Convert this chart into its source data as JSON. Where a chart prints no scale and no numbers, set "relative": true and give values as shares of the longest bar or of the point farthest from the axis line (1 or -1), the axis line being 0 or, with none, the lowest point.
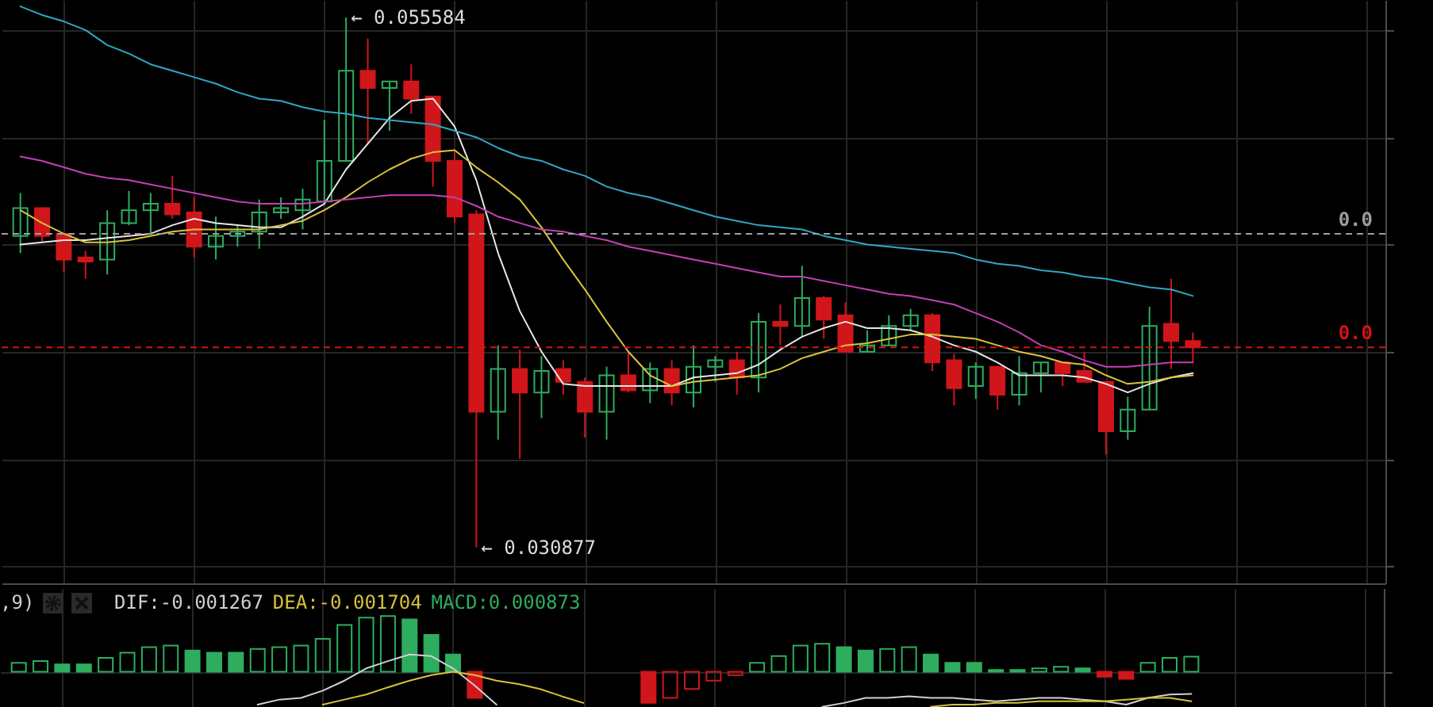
{
  "chart_data": [
    {
      "type": "candlestick",
      "categories": [
        null,
        null,
        null,
        null,
        null,
        null,
        null,
        null,
        null,
        null,
        null,
        null,
        null,
        null,
        null,
        null,
        null,
        null,
        null,
        null,
        null,
        null,
        null,
        null,
        null,
        null,
        null,
        null,
        null,
        null,
        null,
        null,
        null,
        null,
        null,
        null,
        null,
        null,
        null,
        null,
        null,
        null,
        null,
        null,
        null,
        null,
        null,
        null,
        null,
        null,
        null,
        null,
        null,
        null,
        null
      ],
      "ohlc": [
        [
          0.0454,
          0.0474,
          0.0446,
          0.0467
        ],
        [
          0.0467,
          0.0467,
          0.0451,
          0.0454
        ],
        [
          0.0455,
          0.0455,
          0.0437,
          0.0443
        ],
        [
          0.0444,
          0.0447,
          0.0434,
          0.0442
        ],
        [
          0.0443,
          0.0466,
          0.0436,
          0.046
        ],
        [
          0.046,
          0.0475,
          0.0459,
          0.0466
        ],
        [
          0.0466,
          0.0474,
          0.0455,
          0.0469
        ],
        [
          0.0469,
          0.0482,
          0.0462,
          0.0464
        ],
        [
          0.0465,
          0.0472,
          0.0444,
          0.0449
        ],
        [
          0.0449,
          0.0463,
          0.0443,
          0.0454
        ],
        [
          0.0454,
          0.0459,
          0.0449,
          0.0456
        ],
        [
          0.0456,
          0.0471,
          0.0448,
          0.0465
        ],
        [
          0.0465,
          0.0472,
          0.0462,
          0.0467
        ],
        [
          0.0466,
          0.0476,
          0.0457,
          0.0471
        ],
        [
          0.047,
          0.0508,
          0.047,
          0.0489
        ],
        [
          0.0489,
          0.055584,
          0.0489,
          0.0531
        ],
        [
          0.0531,
          0.0546,
          0.0497,
          0.0523
        ],
        [
          0.0523,
          0.0526,
          0.0503,
          0.0526
        ],
        [
          0.0526,
          0.0534,
          0.0511,
          0.0518
        ],
        [
          0.0519,
          0.0519,
          0.0477,
          0.0489
        ],
        [
          0.0489,
          0.0493,
          0.046,
          0.0463
        ],
        [
          0.0464,
          0.0466,
          0.030877,
          0.0372
        ],
        [
          0.0372,
          0.0403,
          0.0359,
          0.0392
        ],
        [
          0.0392,
          0.0401,
          0.035,
          0.0381
        ],
        [
          0.0381,
          0.0398,
          0.0369,
          0.0391
        ],
        [
          0.0392,
          0.0396,
          0.038,
          0.0386
        ],
        [
          0.0386,
          0.0388,
          0.036,
          0.0372
        ],
        [
          0.0372,
          0.0393,
          0.0359,
          0.0389
        ],
        [
          0.0389,
          0.04,
          0.0381,
          0.0382
        ],
        [
          0.0382,
          0.0395,
          0.0376,
          0.0392
        ],
        [
          0.0392,
          0.0396,
          0.0375,
          0.0381
        ],
        [
          0.0381,
          0.0403,
          0.0374,
          0.0393
        ],
        [
          0.0393,
          0.0398,
          0.0386,
          0.0396
        ],
        [
          0.0396,
          0.04,
          0.038,
          0.0388
        ],
        [
          0.0388,
          0.0418,
          0.0381,
          0.0414
        ],
        [
          0.0414,
          0.0422,
          0.0403,
          0.0412
        ],
        [
          0.0412,
          0.044,
          0.0407,
          0.0425
        ],
        [
          0.0425,
          0.0426,
          0.0406,
          0.0415
        ],
        [
          0.0417,
          0.0423,
          0.04,
          0.04
        ],
        [
          0.04,
          0.041,
          0.04,
          0.0403
        ],
        [
          0.0403,
          0.0417,
          0.0403,
          0.0412
        ],
        [
          0.0412,
          0.042,
          0.041,
          0.0417
        ],
        [
          0.0417,
          0.0418,
          0.0391,
          0.0395
        ],
        [
          0.0396,
          0.0399,
          0.0375,
          0.0383
        ],
        [
          0.0384,
          0.0395,
          0.0378,
          0.0393
        ],
        [
          0.0393,
          0.0393,
          0.0373,
          0.038
        ],
        [
          0.038,
          0.0398,
          0.0375,
          0.039
        ],
        [
          0.039,
          0.0395,
          0.0381,
          0.0395
        ],
        [
          0.0395,
          0.0395,
          0.0384,
          0.039
        ],
        [
          0.0391,
          0.04,
          0.0386,
          0.0386
        ],
        [
          0.0386,
          0.0386,
          0.0352,
          0.0363
        ],
        [
          0.0363,
          0.0379,
          0.0359,
          0.0373
        ],
        [
          0.0373,
          0.0421,
          0.0373,
          0.0412
        ],
        [
          0.0413,
          0.0434,
          0.0392,
          0.0405
        ],
        [
          0.0405,
          0.0409,
          0.0395,
          0.0402
        ]
      ],
      "colors": [
        "#2ead5e",
        "#d0161a",
        "#d0161a",
        "#d0161a",
        "#2ead5e",
        "#2ead5e",
        "#2ead5e",
        "#d0161a",
        "#d0161a",
        "#2ead5e",
        "#2ead5e",
        "#2ead5e",
        "#2ead5e",
        "#2ead5e",
        "#2ead5e",
        "#2ead5e",
        "#d0161a",
        "#2ead5e",
        "#d0161a",
        "#d0161a",
        "#d0161a",
        "#d0161a",
        "#2ead5e",
        "#d0161a",
        "#2ead5e",
        "#d0161a",
        "#d0161a",
        "#2ead5e",
        "#d0161a",
        "#2ead5e",
        "#d0161a",
        "#2ead5e",
        "#2ead5e",
        "#d0161a",
        "#2ead5e",
        "#d0161a",
        "#2ead5e",
        "#d0161a",
        "#d0161a",
        "#2ead5e",
        "#2ead5e",
        "#2ead5e",
        "#d0161a",
        "#d0161a",
        "#2ead5e",
        "#d0161a",
        "#2ead5e",
        "#2ead5e",
        "#d0161a",
        "#d0161a",
        "#d0161a",
        "#2ead5e",
        "#2ead5e",
        "#d0161a",
        "#d0161a"
      ],
      "series": [
        {
          "type": "line",
          "color": "#e6e6e6",
          "values": [
            0.045,
            0.0451,
            0.0452,
            0.0452,
            0.0453,
            0.0454,
            0.0455,
            0.0459,
            0.0462,
            0.046,
            0.0459,
            0.0458,
            0.0458,
            0.0463,
            0.0469,
            0.0485,
            0.0497,
            0.0509,
            0.0517,
            0.0518,
            0.0505,
            0.048,
            0.0446,
            0.0419,
            0.04,
            0.0385,
            0.0384,
            0.0384,
            0.0384,
            0.0384,
            0.0384,
            0.0388,
            0.0389,
            0.039,
            0.0394,
            0.0401,
            0.0407,
            0.0411,
            0.0414,
            0.0411,
            0.0411,
            0.041,
            0.0407,
            0.0403,
            0.04,
            0.0395,
            0.0389,
            0.0389,
            0.0389,
            0.0388,
            0.0385,
            0.0381,
            0.0385,
            0.0388,
            0.039
          ]
        },
        {
          "type": "line",
          "color": "#d9c43c",
          "values": [
            0.0466,
            0.046,
            0.0455,
            0.0451,
            0.0451,
            0.0452,
            0.0454,
            0.0456,
            0.0457,
            0.0457,
            0.0457,
            0.0457,
            0.0459,
            0.0461,
            0.0466,
            0.0472,
            0.0479,
            0.0485,
            0.049,
            0.0493,
            0.0494,
            0.0486,
            0.0479,
            0.0471,
            0.0458,
            0.0443,
            0.0429,
            0.0414,
            0.04,
            0.0389,
            0.0384,
            0.0386,
            0.0387,
            0.0388,
            0.0389,
            0.0392,
            0.0397,
            0.04,
            0.0403,
            0.0404,
            0.0406,
            0.0408,
            0.0408,
            0.0407,
            0.0406,
            0.0403,
            0.04,
            0.0398,
            0.0395,
            0.0394,
            0.0389,
            0.0385,
            0.0386,
            0.0388,
            0.0389
          ]
        },
        {
          "type": "line",
          "color": "#c43fb4",
          "values": [
            0.0491,
            0.0489,
            0.0486,
            0.0483,
            0.0481,
            0.048,
            0.0478,
            0.0476,
            0.0474,
            0.0472,
            0.047,
            0.0469,
            0.0469,
            0.0469,
            0.047,
            0.0471,
            0.0472,
            0.0473,
            0.0473,
            0.0473,
            0.0472,
            0.0468,
            0.0463,
            0.046,
            0.0457,
            0.0456,
            0.0454,
            0.0452,
            0.0449,
            0.0447,
            0.0445,
            0.0443,
            0.0441,
            0.0439,
            0.0437,
            0.0435,
            0.0435,
            0.0433,
            0.0431,
            0.0429,
            0.0427,
            0.0426,
            0.0424,
            0.0422,
            0.0418,
            0.0414,
            0.0409,
            0.0403,
            0.04,
            0.0396,
            0.0393,
            0.0393,
            0.0394,
            0.0395,
            0.0395
          ]
        },
        {
          "type": "line",
          "color": "#2fa8c4",
          "values": [
            0.0561,
            0.0557,
            0.0554,
            0.055,
            0.0543,
            0.0539,
            0.0534,
            0.0531,
            0.0528,
            0.0525,
            0.0521,
            0.0518,
            0.0517,
            0.0514,
            0.0512,
            0.0511,
            0.0509,
            0.0508,
            0.0507,
            0.0506,
            0.0503,
            0.05,
            0.0495,
            0.0491,
            0.0489,
            0.0485,
            0.0482,
            0.0477,
            0.0474,
            0.0472,
            0.0469,
            0.0466,
            0.0463,
            0.0461,
            0.0459,
            0.0458,
            0.0457,
            0.0454,
            0.0452,
            0.045,
            0.0449,
            0.0448,
            0.0447,
            0.0446,
            0.0443,
            0.0441,
            0.044,
            0.0438,
            0.0437,
            0.0435,
            0.0434,
            0.0432,
            0.043,
            0.0429,
            0.0426
          ]
        }
      ],
      "ylim": [
        0.0292,
        0.0564
      ],
      "yticks": [
        {
          "value": 0.055,
          "label": null
        },
        {
          "value": 0.05,
          "label": null
        },
        {
          "value": 0.045,
          "label": null
        },
        {
          "value": 0.04,
          "label": null
        },
        {
          "value": 0.035,
          "label": null
        },
        {
          "value": 0.03,
          "label": null
        }
      ],
      "grid": true,
      "ref_lines": [
        {
          "axis": "y",
          "value": 0.0455,
          "label": "0.0",
          "color": "#9e9e9e",
          "line_style": "dashed"
        },
        {
          "axis": "y",
          "value": 0.0402,
          "label": "0.0",
          "color": "#d41414",
          "line_style": "dashed"
        }
      ],
      "annotations": [
        "← 0.055584",
        "← 0.030877"
      ]
    },
    {
      "type": "bar",
      "categories": [
        null,
        null,
        null,
        null,
        null,
        null,
        null,
        null,
        null,
        null,
        null,
        null,
        null,
        null,
        null,
        null,
        null,
        null,
        null,
        null,
        null,
        null,
        null,
        null,
        null,
        null,
        null,
        null,
        null,
        null,
        null,
        null,
        null,
        null,
        null,
        null,
        null,
        null,
        null,
        null,
        null,
        null,
        null,
        null,
        null,
        null,
        null,
        null,
        null,
        null,
        null,
        null,
        null,
        null,
        null
      ],
      "series": [
        {
          "name": "DIF:-0.001267",
          "type": "line",
          "color": "#d0d0d0",
          "values": [
            null,
            null,
            null,
            null,
            null,
            null,
            null,
            null,
            null,
            null,
            null,
            -0.59,
            -0.5,
            -0.47,
            -0.34,
            -0.16,
            0.06,
            0.19,
            0.31,
            0.28,
            0.06,
            -0.25,
            -0.59,
            null,
            null,
            null,
            null,
            null,
            null,
            null,
            null,
            null,
            null,
            null,
            null,
            null,
            null,
            null,
            null,
            null,
            null,
            null,
            null,
            null,
            null,
            null,
            null,
            null,
            null,
            null,
            null,
            null,
            null,
            null,
            null
          ]
        },
        {
          "type": "line",
          "color": "#d0d0d0",
          "values": [
            null,
            null,
            null,
            null,
            null,
            null,
            null,
            null,
            null,
            null,
            null,
            null,
            null,
            null,
            null,
            null,
            null,
            null,
            null,
            null,
            null,
            null,
            null,
            null,
            null,
            null,
            null,
            null,
            null,
            null,
            null,
            null,
            null,
            null,
            null,
            null,
            null,
            -0.63,
            -0.56,
            -0.47,
            -0.47,
            -0.44,
            -0.47,
            -0.47,
            -0.5,
            -0.53,
            -0.5,
            -0.47,
            -0.47,
            -0.5,
            -0.53,
            -0.59,
            -0.47,
            -0.41,
            -0.4
          ]
        },
        {
          "name": "DEA:-0.001704",
          "type": "line",
          "color": "#d6c23a",
          "values": [
            null,
            null,
            null,
            null,
            null,
            null,
            null,
            null,
            null,
            null,
            null,
            null,
            null,
            null,
            -0.59,
            -0.5,
            -0.41,
            -0.28,
            -0.16,
            -0.06,
            0,
            -0.06,
            -0.16,
            -0.22,
            -0.31,
            -0.44,
            -0.56,
            null,
            null,
            null,
            null,
            null,
            null,
            null,
            null,
            null,
            null,
            null,
            null,
            null,
            null,
            null,
            null,
            null,
            null,
            null,
            null,
            null,
            null,
            null,
            null,
            null,
            null,
            null,
            null
          ]
        },
        {
          "type": "line",
          "color": "#d6c23a",
          "values": [
            null,
            null,
            null,
            null,
            null,
            null,
            null,
            null,
            null,
            null,
            null,
            null,
            null,
            null,
            null,
            null,
            null,
            null,
            null,
            null,
            null,
            null,
            null,
            null,
            null,
            null,
            null,
            null,
            null,
            null,
            null,
            null,
            null,
            null,
            null,
            null,
            null,
            null,
            null,
            null,
            null,
            null,
            -0.63,
            -0.59,
            -0.59,
            -0.56,
            -0.56,
            -0.53,
            -0.53,
            -0.53,
            -0.53,
            -0.5,
            -0.47,
            -0.47,
            -0.53
          ]
        },
        {
          "name": "MACD:0.000873",
          "type": "bar",
          "color": "#2ead5e",
          "values": [
            0.16,
            0.19,
            0.13,
            0.13,
            0.25,
            0.34,
            0.44,
            0.47,
            0.38,
            0.34,
            0.34,
            0.41,
            0.44,
            0.47,
            0.59,
            0.84,
            0.97,
            1,
            0.94,
            0.66,
            0.31,
            -0.47,
            null,
            null,
            null,
            null,
            null,
            null,
            null,
            -0.56,
            -0.47,
            -0.31,
            -0.16,
            -0.06,
            0.16,
            0.28,
            0.47,
            0.5,
            0.44,
            0.38,
            0.41,
            0.44,
            0.31,
            0.16,
            0.16,
            0.03,
            0.03,
            0.06,
            0.09,
            0.06,
            -0.09,
            -0.13,
            0.16,
            0.25,
            0.27
          ],
          "colors": [
            "#2ead5e",
            "#2ead5e",
            "#2ead5e",
            "#2ead5e",
            "#2ead5e",
            "#2ead5e",
            "#2ead5e",
            "#2ead5e",
            "#2ead5e",
            "#2ead5e",
            "#2ead5e",
            "#2ead5e",
            "#2ead5e",
            "#2ead5e",
            "#2ead5e",
            "#2ead5e",
            "#2ead5e",
            "#2ead5e",
            "#2ead5e",
            "#2ead5e",
            "#2ead5e",
            "#d0161a",
            null,
            null,
            null,
            null,
            null,
            null,
            null,
            "#d0161a",
            "#d0161a",
            "#d0161a",
            "#d0161a",
            "#d0161a",
            "#2ead5e",
            "#2ead5e",
            "#2ead5e",
            "#2ead5e",
            "#2ead5e",
            "#2ead5e",
            "#2ead5e",
            "#2ead5e",
            "#2ead5e",
            "#2ead5e",
            "#2ead5e",
            "#2ead5e",
            "#2ead5e",
            "#2ead5e",
            "#2ead5e",
            "#2ead5e",
            "#d0161a",
            "#d0161a",
            "#2ead5e",
            "#2ead5e",
            "#2ead5e"
          ]
        }
      ],
      "relative": true,
      "grid": true,
      "annotations": [
        ",9)"
      ]
    }
  ]
}
